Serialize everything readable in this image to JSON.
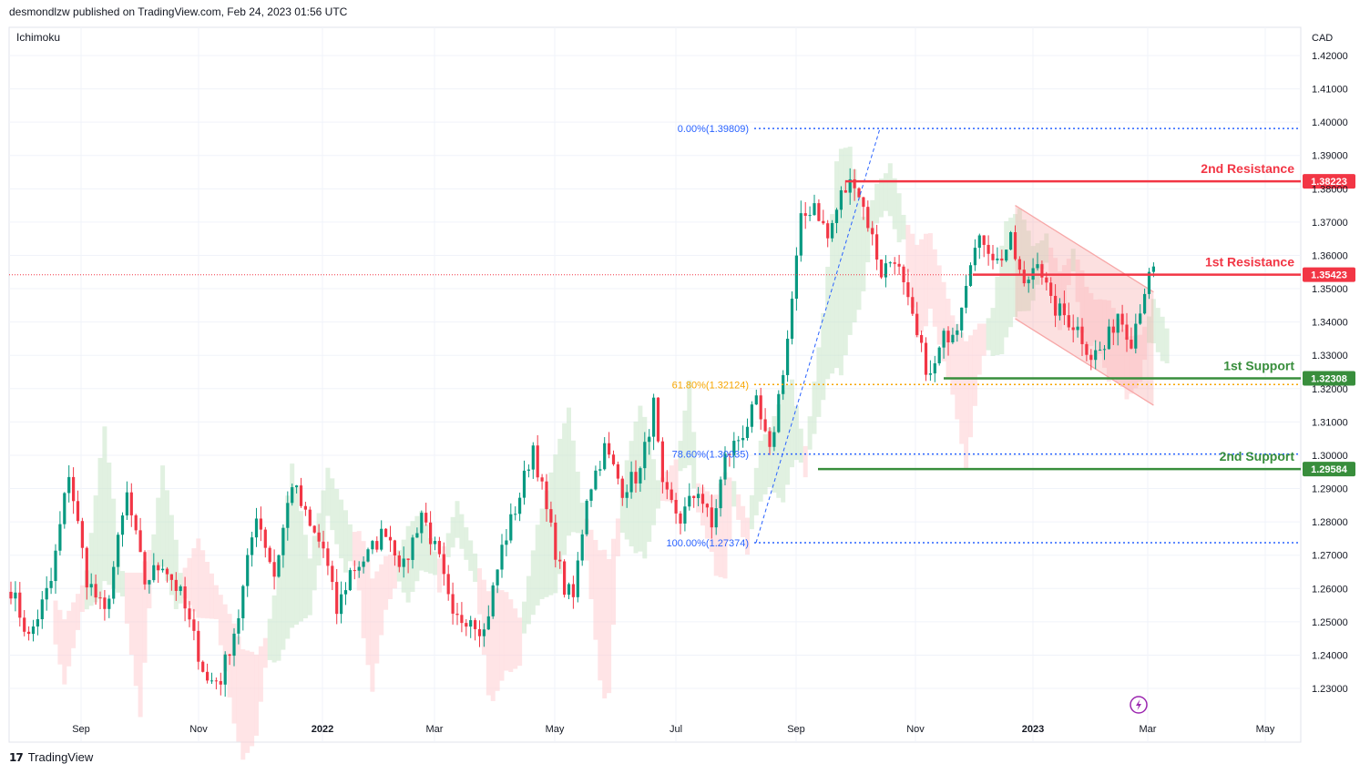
{
  "header": {
    "publisher": "desmondlzw published on TradingView.com, Feb 24, 2023 01:56 UTC"
  },
  "indicator": "Ichimoku",
  "footer": {
    "brand": "TradingView"
  },
  "currency": "CAD",
  "colors": {
    "resistance": "#f23645",
    "support": "#388e3c",
    "fib_blue": "#2962ff",
    "fib_orange": "#f7a600",
    "channel": "#f7a7a7",
    "candle_up": "#089981",
    "candle_down": "#f23645",
    "cloud_bull": "#c8e6c9",
    "cloud_bear": "#ffcdd2"
  },
  "chart_data": {
    "type": "candlestick",
    "instrument_currency": "CAD",
    "ylim": [
      1.22,
      1.43
    ],
    "y_ticks": [
      "1.42000",
      "1.41000",
      "1.40000",
      "1.39000",
      "1.38000",
      "1.37000",
      "1.36000",
      "1.35000",
      "1.34000",
      "1.33000",
      "1.32000",
      "1.31000",
      "1.30000",
      "1.29000",
      "1.28000",
      "1.27000",
      "1.26000",
      "1.25000",
      "1.24000",
      "1.23000"
    ],
    "x_ticks": [
      {
        "label": "Sep",
        "bold": false
      },
      {
        "label": "Nov",
        "bold": false
      },
      {
        "label": "2022",
        "bold": true
      },
      {
        "label": "Mar",
        "bold": false
      },
      {
        "label": "May",
        "bold": false
      },
      {
        "label": "Jul",
        "bold": false
      },
      {
        "label": "Sep",
        "bold": false
      },
      {
        "label": "Nov",
        "bold": false
      },
      {
        "label": "2023",
        "bold": true
      },
      {
        "label": "Mar",
        "bold": false
      },
      {
        "label": "May",
        "bold": false
      }
    ],
    "current_price": 1.3542,
    "price_path": [
      [
        0,
        1.26
      ],
      [
        4,
        1.245
      ],
      [
        9,
        1.262
      ],
      [
        13,
        1.295
      ],
      [
        17,
        1.263
      ],
      [
        21,
        1.252
      ],
      [
        26,
        1.288
      ],
      [
        30,
        1.262
      ],
      [
        34,
        1.268
      ],
      [
        38,
        1.258
      ],
      [
        41,
        1.245
      ],
      [
        44,
        1.232
      ],
      [
        47,
        1.233
      ],
      [
        51,
        1.252
      ],
      [
        55,
        1.283
      ],
      [
        59,
        1.264
      ],
      [
        63,
        1.292
      ],
      [
        67,
        1.278
      ],
      [
        70,
        1.272
      ],
      [
        73,
        1.253
      ],
      [
        76,
        1.265
      ],
      [
        80,
        1.27
      ],
      [
        84,
        1.278
      ],
      [
        88,
        1.266
      ],
      [
        92,
        1.283
      ],
      [
        96,
        1.268
      ],
      [
        99,
        1.25
      ],
      [
        103,
        1.252
      ],
      [
        106,
        1.247
      ],
      [
        110,
        1.272
      ],
      [
        114,
        1.288
      ],
      [
        117,
        1.303
      ],
      [
        120,
        1.283
      ],
      [
        124,
        1.26
      ],
      [
        126,
        1.257
      ],
      [
        129,
        1.288
      ],
      [
        133,
        1.302
      ],
      [
        137,
        1.29
      ],
      [
        141,
        1.295
      ],
      [
        144,
        1.315
      ],
      [
        146,
        1.289
      ],
      [
        150,
        1.281
      ],
      [
        154,
        1.29
      ],
      [
        157,
        1.278
      ],
      [
        160,
        1.299
      ],
      [
        164,
        1.307
      ],
      [
        167,
        1.315
      ],
      [
        170,
        1.3
      ],
      [
        174,
        1.335
      ],
      [
        177,
        1.37
      ],
      [
        180,
        1.376
      ],
      [
        183,
        1.365
      ],
      [
        186,
        1.378
      ],
      [
        189,
        1.383
      ],
      [
        192,
        1.37
      ],
      [
        195,
        1.355
      ],
      [
        198,
        1.36
      ],
      [
        200,
        1.35
      ],
      [
        203,
        1.335
      ],
      [
        206,
        1.323
      ],
      [
        209,
        1.335
      ],
      [
        212,
        1.34
      ],
      [
        215,
        1.36
      ],
      [
        218,
        1.365
      ],
      [
        221,
        1.358
      ],
      [
        224,
        1.364
      ],
      [
        227,
        1.35
      ],
      [
        230,
        1.36
      ],
      [
        233,
        1.345
      ],
      [
        236,
        1.342
      ],
      [
        239,
        1.338
      ],
      [
        242,
        1.33
      ],
      [
        245,
        1.332
      ],
      [
        248,
        1.343
      ],
      [
        251,
        1.335
      ],
      [
        254,
        1.35
      ],
      [
        256,
        1.355
      ]
    ],
    "channel": {
      "upper": [
        [
          1.375,
          225
        ],
        [
          1.349,
          256
        ]
      ],
      "lower": [
        [
          1.341,
          225
        ],
        [
          1.315,
          256
        ]
      ]
    },
    "levels": [
      {
        "name": "2nd Resistance",
        "value": 1.38223,
        "label": "1.38223",
        "type": "resistance"
      },
      {
        "name": "1st Resistance",
        "value": 1.35423,
        "label": "1.35423",
        "type": "resistance"
      },
      {
        "name": "1st Support",
        "value": 1.32308,
        "label": "1.32308",
        "type": "support"
      },
      {
        "name": "2nd Support",
        "value": 1.29584,
        "label": "1.29584",
        "type": "support"
      }
    ],
    "fibonacci": [
      {
        "label": "0.00%(1.39809)",
        "value": 1.39809,
        "color": "blue"
      },
      {
        "label": "61.80%(1.32124)",
        "value": 1.32124,
        "color": "orange"
      },
      {
        "label": "78.60%(1.30035)",
        "value": 1.30035,
        "color": "blue"
      },
      {
        "label": "100.00%(1.27374)",
        "value": 1.27374,
        "color": "blue"
      }
    ],
    "icons": [
      "lightning-icon"
    ]
  }
}
